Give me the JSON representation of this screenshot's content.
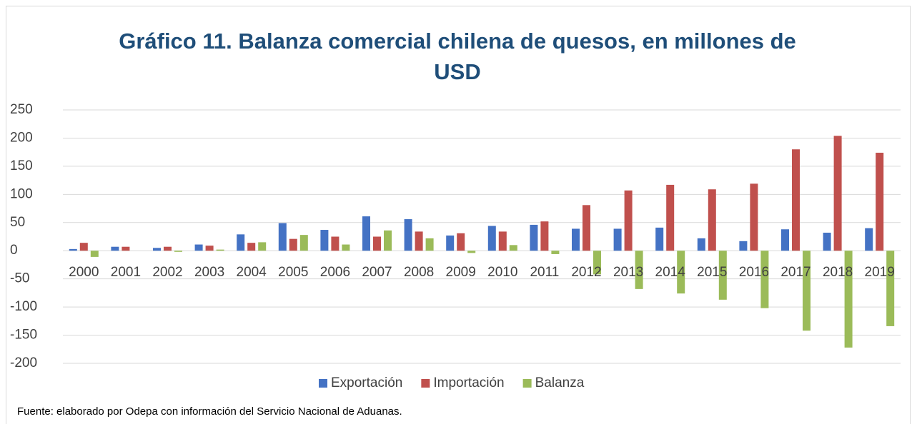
{
  "chart_data": {
    "type": "bar",
    "title": "Gráfico 11. Balanza comercial chilena de quesos, en millones de USD",
    "source": "Fuente: elaborado por Odepa con información del Servicio Nacional de Aduanas.",
    "categories": [
      "2000",
      "2001",
      "2002",
      "2003",
      "2004",
      "2005",
      "2006",
      "2007",
      "2008",
      "2009",
      "2010",
      "2011",
      "2012",
      "2013",
      "2014",
      "2015",
      "2016",
      "2017",
      "2018",
      "2019"
    ],
    "series": [
      {
        "name": "Exportación",
        "color": "#4472c4",
        "values": [
          3,
          7,
          5,
          11,
          29,
          49,
          37,
          61,
          56,
          27,
          44,
          46,
          39,
          39,
          41,
          22,
          17,
          38,
          32,
          40
        ]
      },
      {
        "name": "Importación",
        "color": "#c0504d",
        "values": [
          14,
          7,
          7,
          9,
          14,
          21,
          25,
          25,
          34,
          31,
          34,
          52,
          81,
          107,
          117,
          109,
          119,
          180,
          204,
          174
        ]
      },
      {
        "name": "Balanza",
        "color": "#9bbb59",
        "values": [
          -11,
          0,
          -2,
          2,
          15,
          28,
          11,
          36,
          22,
          -4,
          10,
          -6,
          -42,
          -68,
          -76,
          -87,
          -102,
          -142,
          -172,
          -134
        ]
      }
    ],
    "ylim": [
      -200,
      250
    ],
    "yticks": [
      -200,
      -150,
      -100,
      -50,
      0,
      50,
      100,
      150,
      200,
      250
    ],
    "grid": true,
    "legend": "bottom"
  }
}
